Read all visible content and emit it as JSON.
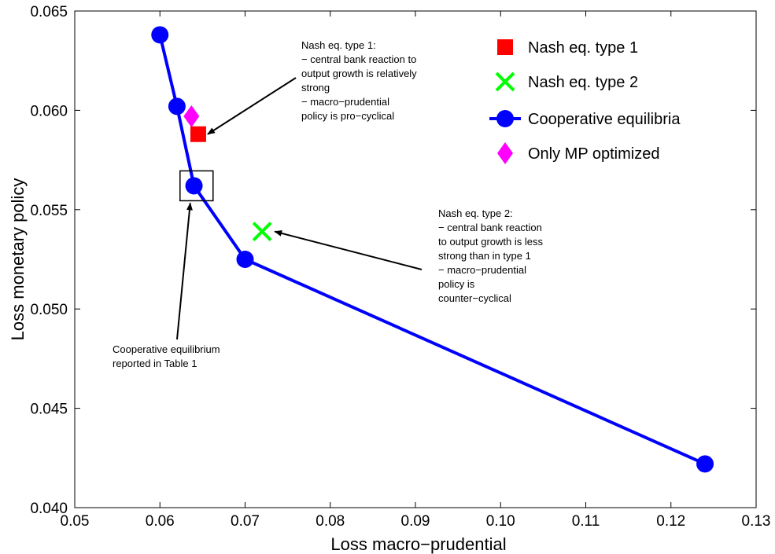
{
  "chart_data": {
    "type": "scatter",
    "xlabel": "Loss macro−prudential",
    "ylabel": "Loss monetary policy",
    "xlim": [
      0.05,
      0.13
    ],
    "ylim": [
      0.04,
      0.065
    ],
    "x_ticks": [
      "0.05",
      "0.06",
      "0.07",
      "0.08",
      "0.09",
      "0.10",
      "0.11",
      "0.12",
      "0.13"
    ],
    "y_ticks": [
      "0.040",
      "0.045",
      "0.050",
      "0.055",
      "0.060",
      "0.065"
    ],
    "grid": false,
    "legend_position": "top-right",
    "series": [
      {
        "name": "Nash eq. type 1",
        "marker": "square",
        "color": "#ff0000",
        "points": [
          [
            0.0645,
            0.0588
          ]
        ]
      },
      {
        "name": "Nash eq. type 2",
        "marker": "x",
        "color": "#00ff00",
        "points": [
          [
            0.072,
            0.0539
          ]
        ]
      },
      {
        "name": "Cooperative equilibria",
        "marker": "circle-line",
        "color": "#0000ff",
        "points": [
          [
            0.06,
            0.0638
          ],
          [
            0.062,
            0.0602
          ],
          [
            0.064,
            0.0562
          ],
          [
            0.07,
            0.0525
          ],
          [
            0.124,
            0.0422
          ]
        ]
      },
      {
        "name": "Only MP optimized",
        "marker": "diamond",
        "color": "#ff00ff",
        "points": [
          [
            0.0637,
            0.0597
          ]
        ]
      }
    ],
    "annotations": [
      {
        "lines": [
          "Nash eq. type 1:",
          "− central bank reaction to",
          "output growth is relatively",
          "strong",
          "− macro−prudential",
          "policy is pro−cyclical"
        ]
      },
      {
        "lines": [
          "Nash eq. type 2:",
          "− central bank reaction",
          "to output growth is less",
          "strong than in type 1",
          "− macro−prudential",
          "policy is",
          "counter−cyclical"
        ]
      },
      {
        "lines": [
          "Cooperative equilibrium",
          "reported in Table 1"
        ]
      }
    ],
    "highlight_box": {
      "x": 0.0643,
      "y": 0.0562
    }
  }
}
